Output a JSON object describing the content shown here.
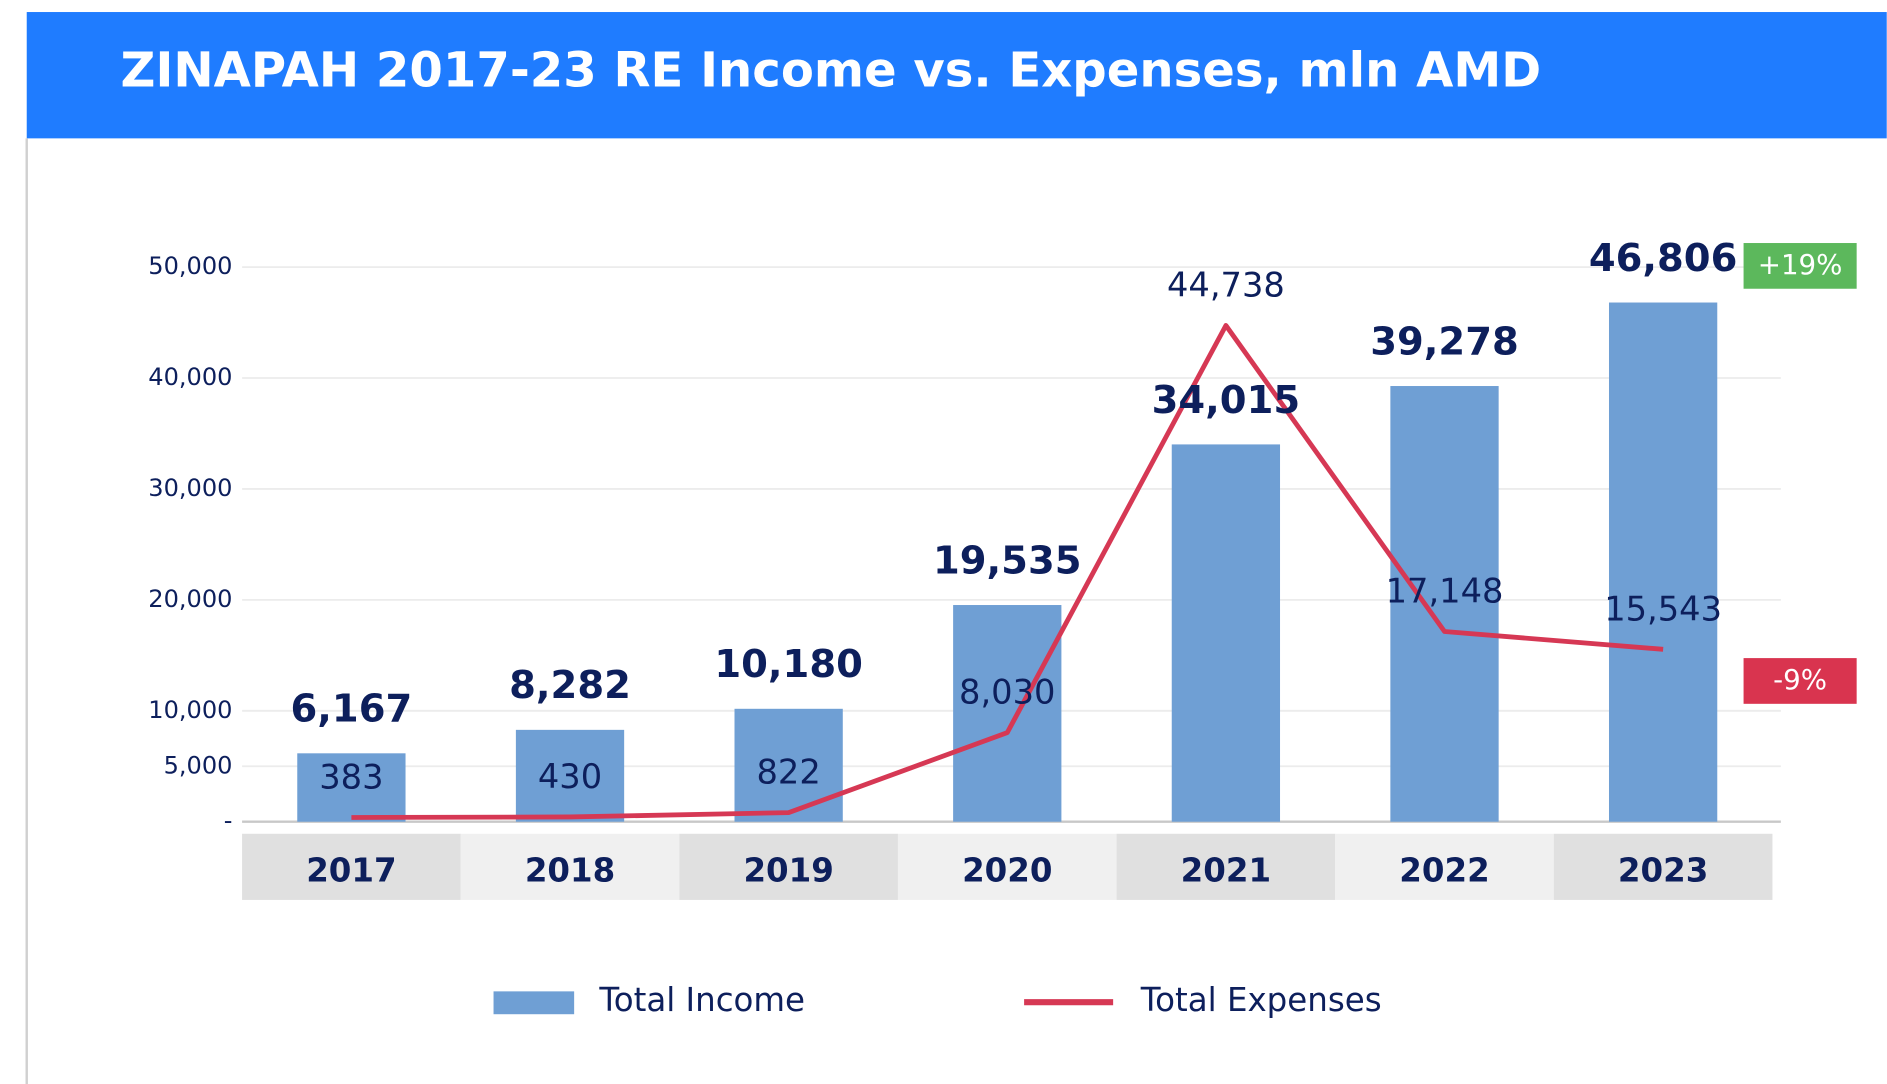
{
  "chart_data": {
    "type": "bar_line",
    "title": "ZINAPAH 2017-23 RE Income vs. Expenses, mln AMD",
    "categories": [
      "2017",
      "2018",
      "2019",
      "2020",
      "2021",
      "2022",
      "2023"
    ],
    "series": [
      {
        "name": "Total Income",
        "type": "bar",
        "color": "#6f9fd4",
        "values": [
          6167,
          8282,
          10180,
          19535,
          34015,
          39278,
          46806
        ],
        "value_labels": [
          "6,167",
          "8,282",
          "10,180",
          "19,535",
          "34,015",
          "39,278",
          "46,806"
        ]
      },
      {
        "name": "Total Expenses",
        "type": "line",
        "color": "#d63854",
        "values": [
          383,
          430,
          822,
          8030,
          44738,
          17148,
          15543
        ],
        "value_labels": [
          "383",
          "430",
          "822",
          "8,030",
          "44,738",
          "17,148",
          "15,543"
        ]
      }
    ],
    "ylim": [
      0,
      50000
    ],
    "yticks": [
      {
        "value": 0,
        "label": "-"
      },
      {
        "value": 5000,
        "label": "5,000"
      },
      {
        "value": 10000,
        "label": "10,000"
      },
      {
        "value": 20000,
        "label": "20,000"
      },
      {
        "value": 30000,
        "label": "30,000"
      },
      {
        "value": 40000,
        "label": "40,000"
      },
      {
        "value": 50000,
        "label": "50,000"
      }
    ],
    "grid": true,
    "legend": "bottom",
    "annotations": [
      {
        "text": "+19%",
        "color": "#5cb85c"
      },
      {
        "text": "-9%",
        "color": "#d9344f"
      }
    ]
  }
}
